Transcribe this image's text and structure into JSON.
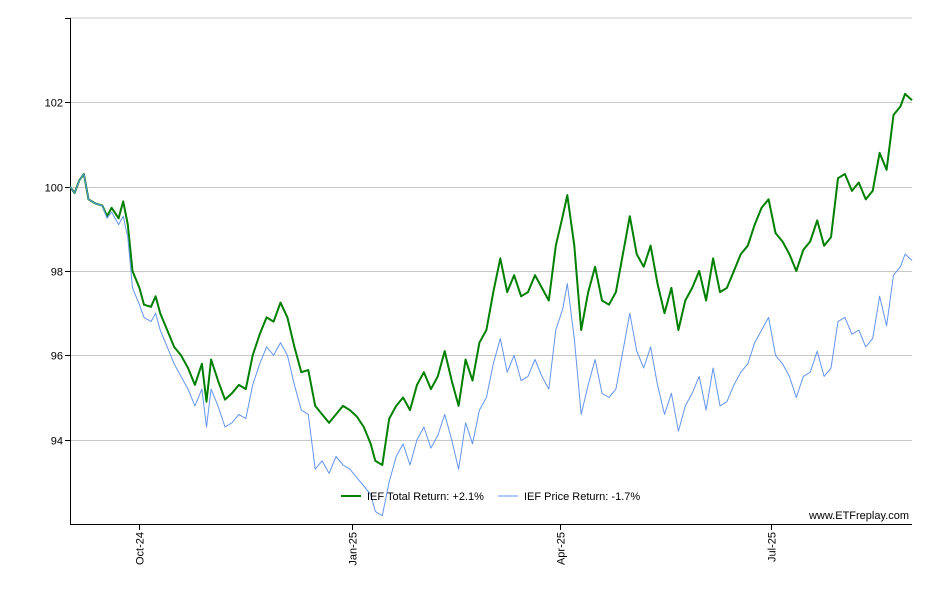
{
  "chart_data": {
    "type": "line",
    "title": "",
    "xlabel": "",
    "ylabel": "",
    "ylim": [
      92.0,
      104.0
    ],
    "yticks": [
      94,
      96,
      98,
      100,
      102
    ],
    "xlim": [
      "2024-09-01",
      "2025-08-31"
    ],
    "xticks": [
      {
        "label": "Oct-24",
        "date": "2024-10-01"
      },
      {
        "label": "Jan-25",
        "date": "2025-01-01"
      },
      {
        "label": "Apr-25",
        "date": "2025-04-01"
      },
      {
        "label": "Jul-25",
        "date": "2025-07-01"
      }
    ],
    "grid": true,
    "legend_position": "bottom-center",
    "credit": "www.ETFreplay.com",
    "series": [
      {
        "name": "IEF Total Return: +2.1%",
        "color": "#008000",
        "points": [
          [
            "2024-09-01",
            100.0
          ],
          [
            "2024-09-03",
            99.85
          ],
          [
            "2024-09-05",
            100.15
          ],
          [
            "2024-09-07",
            100.3
          ],
          [
            "2024-09-09",
            99.7
          ],
          [
            "2024-09-12",
            99.6
          ],
          [
            "2024-09-15",
            99.55
          ],
          [
            "2024-09-17",
            99.3
          ],
          [
            "2024-09-19",
            99.5
          ],
          [
            "2024-09-22",
            99.25
          ],
          [
            "2024-09-24",
            99.65
          ],
          [
            "2024-09-26",
            99.1
          ],
          [
            "2024-09-28",
            98.0
          ],
          [
            "2024-10-01",
            97.6
          ],
          [
            "2024-10-03",
            97.2
          ],
          [
            "2024-10-06",
            97.15
          ],
          [
            "2024-10-08",
            97.4
          ],
          [
            "2024-10-10",
            97.0
          ],
          [
            "2024-10-13",
            96.6
          ],
          [
            "2024-10-16",
            96.2
          ],
          [
            "2024-10-19",
            96.0
          ],
          [
            "2024-10-22",
            95.7
          ],
          [
            "2024-10-25",
            95.3
          ],
          [
            "2024-10-28",
            95.8
          ],
          [
            "2024-10-30",
            94.9
          ],
          [
            "2024-11-01",
            95.9
          ],
          [
            "2024-11-04",
            95.4
          ],
          [
            "2024-11-07",
            94.95
          ],
          [
            "2024-11-10",
            95.1
          ],
          [
            "2024-11-13",
            95.3
          ],
          [
            "2024-11-16",
            95.2
          ],
          [
            "2024-11-19",
            96.0
          ],
          [
            "2024-11-22",
            96.5
          ],
          [
            "2024-11-25",
            96.9
          ],
          [
            "2024-11-28",
            96.8
          ],
          [
            "2024-12-01",
            97.25
          ],
          [
            "2024-12-04",
            96.9
          ],
          [
            "2024-12-07",
            96.2
          ],
          [
            "2024-12-10",
            95.6
          ],
          [
            "2024-12-13",
            95.65
          ],
          [
            "2024-12-16",
            94.8
          ],
          [
            "2024-12-19",
            94.6
          ],
          [
            "2024-12-22",
            94.4
          ],
          [
            "2024-12-25",
            94.6
          ],
          [
            "2024-12-28",
            94.8
          ],
          [
            "2024-12-31",
            94.7
          ],
          [
            "2025-01-03",
            94.55
          ],
          [
            "2025-01-06",
            94.3
          ],
          [
            "2025-01-09",
            93.9
          ],
          [
            "2025-01-11",
            93.5
          ],
          [
            "2025-01-14",
            93.4
          ],
          [
            "2025-01-17",
            94.5
          ],
          [
            "2025-01-20",
            94.8
          ],
          [
            "2025-01-23",
            95.0
          ],
          [
            "2025-01-26",
            94.7
          ],
          [
            "2025-01-29",
            95.3
          ],
          [
            "2025-02-01",
            95.6
          ],
          [
            "2025-02-04",
            95.2
          ],
          [
            "2025-02-07",
            95.5
          ],
          [
            "2025-02-10",
            96.1
          ],
          [
            "2025-02-13",
            95.4
          ],
          [
            "2025-02-16",
            94.8
          ],
          [
            "2025-02-19",
            95.9
          ],
          [
            "2025-02-22",
            95.4
          ],
          [
            "2025-02-25",
            96.3
          ],
          [
            "2025-02-28",
            96.6
          ],
          [
            "2025-03-03",
            97.5
          ],
          [
            "2025-03-06",
            98.3
          ],
          [
            "2025-03-09",
            97.5
          ],
          [
            "2025-03-12",
            97.9
          ],
          [
            "2025-03-15",
            97.4
          ],
          [
            "2025-03-18",
            97.5
          ],
          [
            "2025-03-21",
            97.9
          ],
          [
            "2025-03-24",
            97.6
          ],
          [
            "2025-03-27",
            97.3
          ],
          [
            "2025-03-30",
            98.6
          ],
          [
            "2025-04-02",
            99.3
          ],
          [
            "2025-04-04",
            99.8
          ],
          [
            "2025-04-07",
            98.6
          ],
          [
            "2025-04-10",
            96.6
          ],
          [
            "2025-04-13",
            97.5
          ],
          [
            "2025-04-16",
            98.1
          ],
          [
            "2025-04-19",
            97.3
          ],
          [
            "2025-04-22",
            97.2
          ],
          [
            "2025-04-25",
            97.5
          ],
          [
            "2025-04-28",
            98.4
          ],
          [
            "2025-05-01",
            99.3
          ],
          [
            "2025-05-04",
            98.4
          ],
          [
            "2025-05-07",
            98.1
          ],
          [
            "2025-05-10",
            98.6
          ],
          [
            "2025-05-13",
            97.7
          ],
          [
            "2025-05-16",
            97.0
          ],
          [
            "2025-05-19",
            97.6
          ],
          [
            "2025-05-22",
            96.6
          ],
          [
            "2025-05-25",
            97.3
          ],
          [
            "2025-05-28",
            97.6
          ],
          [
            "2025-05-31",
            98.0
          ],
          [
            "2025-06-03",
            97.3
          ],
          [
            "2025-06-06",
            98.3
          ],
          [
            "2025-06-09",
            97.5
          ],
          [
            "2025-06-12",
            97.6
          ],
          [
            "2025-06-15",
            98.0
          ],
          [
            "2025-06-18",
            98.4
          ],
          [
            "2025-06-21",
            98.6
          ],
          [
            "2025-06-24",
            99.1
          ],
          [
            "2025-06-27",
            99.5
          ],
          [
            "2025-06-30",
            99.7
          ],
          [
            "2025-07-03",
            98.9
          ],
          [
            "2025-07-06",
            98.7
          ],
          [
            "2025-07-09",
            98.4
          ],
          [
            "2025-07-12",
            98.0
          ],
          [
            "2025-07-15",
            98.5
          ],
          [
            "2025-07-18",
            98.7
          ],
          [
            "2025-07-21",
            99.2
          ],
          [
            "2025-07-24",
            98.6
          ],
          [
            "2025-07-27",
            98.8
          ],
          [
            "2025-07-30",
            100.2
          ],
          [
            "2025-08-02",
            100.3
          ],
          [
            "2025-08-05",
            99.9
          ],
          [
            "2025-08-08",
            100.1
          ],
          [
            "2025-08-11",
            99.7
          ],
          [
            "2025-08-14",
            99.9
          ],
          [
            "2025-08-17",
            100.8
          ],
          [
            "2025-08-20",
            100.4
          ],
          [
            "2025-08-23",
            101.7
          ],
          [
            "2025-08-26",
            101.9
          ],
          [
            "2025-08-28",
            102.2
          ],
          [
            "2025-08-31",
            102.05
          ]
        ]
      },
      {
        "name": "IEF Price Return: -1.7%",
        "color": "#6495ed",
        "points": [
          [
            "2024-09-01",
            100.0
          ],
          [
            "2024-09-03",
            99.85
          ],
          [
            "2024-09-05",
            100.15
          ],
          [
            "2024-09-07",
            100.3
          ],
          [
            "2024-09-09",
            99.7
          ],
          [
            "2024-09-12",
            99.6
          ],
          [
            "2024-09-15",
            99.55
          ],
          [
            "2024-09-17",
            99.25
          ],
          [
            "2024-09-19",
            99.4
          ],
          [
            "2024-09-22",
            99.1
          ],
          [
            "2024-09-24",
            99.3
          ],
          [
            "2024-09-26",
            98.8
          ],
          [
            "2024-09-28",
            97.6
          ],
          [
            "2024-10-01",
            97.2
          ],
          [
            "2024-10-03",
            96.9
          ],
          [
            "2024-10-06",
            96.8
          ],
          [
            "2024-10-08",
            97.0
          ],
          [
            "2024-10-10",
            96.6
          ],
          [
            "2024-10-13",
            96.2
          ],
          [
            "2024-10-16",
            95.8
          ],
          [
            "2024-10-19",
            95.5
          ],
          [
            "2024-10-22",
            95.2
          ],
          [
            "2024-10-25",
            94.8
          ],
          [
            "2024-10-28",
            95.2
          ],
          [
            "2024-10-30",
            94.3
          ],
          [
            "2024-11-01",
            95.2
          ],
          [
            "2024-11-04",
            94.8
          ],
          [
            "2024-11-07",
            94.3
          ],
          [
            "2024-11-10",
            94.4
          ],
          [
            "2024-11-13",
            94.6
          ],
          [
            "2024-11-16",
            94.5
          ],
          [
            "2024-11-19",
            95.3
          ],
          [
            "2024-11-22",
            95.8
          ],
          [
            "2024-11-25",
            96.2
          ],
          [
            "2024-11-28",
            96.0
          ],
          [
            "2024-12-01",
            96.3
          ],
          [
            "2024-12-04",
            96.0
          ],
          [
            "2024-12-07",
            95.3
          ],
          [
            "2024-12-10",
            94.7
          ],
          [
            "2024-12-13",
            94.6
          ],
          [
            "2024-12-16",
            93.3
          ],
          [
            "2024-12-19",
            93.5
          ],
          [
            "2024-12-22",
            93.2
          ],
          [
            "2024-12-25",
            93.6
          ],
          [
            "2024-12-28",
            93.4
          ],
          [
            "2024-12-31",
            93.3
          ],
          [
            "2025-01-03",
            93.1
          ],
          [
            "2025-01-06",
            92.9
          ],
          [
            "2025-01-09",
            92.7
          ],
          [
            "2025-01-11",
            92.3
          ],
          [
            "2025-01-14",
            92.2
          ],
          [
            "2025-01-17",
            93.0
          ],
          [
            "2025-01-20",
            93.6
          ],
          [
            "2025-01-23",
            93.9
          ],
          [
            "2025-01-26",
            93.4
          ],
          [
            "2025-01-29",
            94.0
          ],
          [
            "2025-02-01",
            94.3
          ],
          [
            "2025-02-04",
            93.8
          ],
          [
            "2025-02-07",
            94.1
          ],
          [
            "2025-02-10",
            94.6
          ],
          [
            "2025-02-13",
            94.0
          ],
          [
            "2025-02-16",
            93.3
          ],
          [
            "2025-02-19",
            94.4
          ],
          [
            "2025-02-22",
            93.9
          ],
          [
            "2025-02-25",
            94.7
          ],
          [
            "2025-02-28",
            95.0
          ],
          [
            "2025-03-03",
            95.8
          ],
          [
            "2025-03-06",
            96.4
          ],
          [
            "2025-03-09",
            95.6
          ],
          [
            "2025-03-12",
            96.0
          ],
          [
            "2025-03-15",
            95.4
          ],
          [
            "2025-03-18",
            95.5
          ],
          [
            "2025-03-21",
            95.9
          ],
          [
            "2025-03-24",
            95.5
          ],
          [
            "2025-03-27",
            95.2
          ],
          [
            "2025-03-30",
            96.6
          ],
          [
            "2025-04-02",
            97.1
          ],
          [
            "2025-04-04",
            97.7
          ],
          [
            "2025-04-07",
            96.4
          ],
          [
            "2025-04-10",
            94.6
          ],
          [
            "2025-04-13",
            95.3
          ],
          [
            "2025-04-16",
            95.9
          ],
          [
            "2025-04-19",
            95.1
          ],
          [
            "2025-04-22",
            95.0
          ],
          [
            "2025-04-25",
            95.2
          ],
          [
            "2025-04-28",
            96.1
          ],
          [
            "2025-05-01",
            97.0
          ],
          [
            "2025-05-04",
            96.1
          ],
          [
            "2025-05-07",
            95.7
          ],
          [
            "2025-05-10",
            96.2
          ],
          [
            "2025-05-13",
            95.3
          ],
          [
            "2025-05-16",
            94.6
          ],
          [
            "2025-05-19",
            95.1
          ],
          [
            "2025-05-22",
            94.2
          ],
          [
            "2025-05-25",
            94.8
          ],
          [
            "2025-05-28",
            95.1
          ],
          [
            "2025-05-31",
            95.5
          ],
          [
            "2025-06-03",
            94.7
          ],
          [
            "2025-06-06",
            95.7
          ],
          [
            "2025-06-09",
            94.8
          ],
          [
            "2025-06-12",
            94.9
          ],
          [
            "2025-06-15",
            95.3
          ],
          [
            "2025-06-18",
            95.6
          ],
          [
            "2025-06-21",
            95.8
          ],
          [
            "2025-06-24",
            96.3
          ],
          [
            "2025-06-27",
            96.6
          ],
          [
            "2025-06-30",
            96.9
          ],
          [
            "2025-07-03",
            96.0
          ],
          [
            "2025-07-06",
            95.8
          ],
          [
            "2025-07-09",
            95.5
          ],
          [
            "2025-07-12",
            95.0
          ],
          [
            "2025-07-15",
            95.5
          ],
          [
            "2025-07-18",
            95.6
          ],
          [
            "2025-07-21",
            96.1
          ],
          [
            "2025-07-24",
            95.5
          ],
          [
            "2025-07-27",
            95.7
          ],
          [
            "2025-07-30",
            96.8
          ],
          [
            "2025-08-02",
            96.9
          ],
          [
            "2025-08-05",
            96.5
          ],
          [
            "2025-08-08",
            96.6
          ],
          [
            "2025-08-11",
            96.2
          ],
          [
            "2025-08-14",
            96.4
          ],
          [
            "2025-08-17",
            97.4
          ],
          [
            "2025-08-20",
            96.7
          ],
          [
            "2025-08-23",
            97.9
          ],
          [
            "2025-08-26",
            98.1
          ],
          [
            "2025-08-28",
            98.4
          ],
          [
            "2025-08-31",
            98.25
          ]
        ]
      }
    ]
  }
}
